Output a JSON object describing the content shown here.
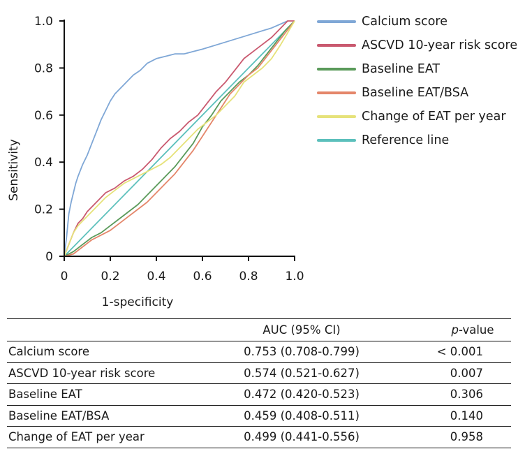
{
  "chart_data": {
    "type": "line",
    "title": "",
    "xlabel": "1-specificity",
    "ylabel": "Sensitivity",
    "xlim": [
      0,
      1
    ],
    "ylim": [
      0,
      1
    ],
    "x_ticks": [
      "0",
      "0.2",
      "0.4",
      "0.6",
      "0.8",
      "1.0"
    ],
    "y_ticks": [
      "0",
      "0.2",
      "0.4",
      "0.6",
      "0.8",
      "1.0"
    ],
    "legend_position": "top-right",
    "series": [
      {
        "name": "Calcium score",
        "color": "#7fa7d6",
        "x": [
          0,
          0.01,
          0.02,
          0.03,
          0.04,
          0.05,
          0.06,
          0.08,
          0.1,
          0.12,
          0.14,
          0.16,
          0.18,
          0.2,
          0.22,
          0.25,
          0.28,
          0.3,
          0.33,
          0.36,
          0.4,
          0.44,
          0.48,
          0.52,
          0.56,
          0.6,
          0.7,
          0.8,
          0.9,
          0.97
        ],
        "y": [
          0,
          0.08,
          0.18,
          0.23,
          0.27,
          0.31,
          0.34,
          0.39,
          0.43,
          0.48,
          0.53,
          0.58,
          0.62,
          0.66,
          0.69,
          0.72,
          0.75,
          0.77,
          0.79,
          0.82,
          0.84,
          0.85,
          0.86,
          0.86,
          0.87,
          0.88,
          0.91,
          0.94,
          0.97,
          1.0
        ]
      },
      {
        "name": "ASCVD 10-year risk score",
        "color": "#c9596f",
        "x": [
          0,
          0.02,
          0.04,
          0.06,
          0.08,
          0.1,
          0.14,
          0.18,
          0.22,
          0.26,
          0.3,
          0.34,
          0.38,
          0.42,
          0.46,
          0.5,
          0.54,
          0.58,
          0.62,
          0.66,
          0.7,
          0.74,
          0.78,
          0.82,
          0.86,
          0.9,
          0.94,
          0.97,
          1.0
        ],
        "y": [
          0,
          0.05,
          0.1,
          0.14,
          0.16,
          0.19,
          0.23,
          0.27,
          0.29,
          0.32,
          0.34,
          0.37,
          0.41,
          0.46,
          0.5,
          0.53,
          0.57,
          0.6,
          0.65,
          0.7,
          0.74,
          0.79,
          0.84,
          0.87,
          0.9,
          0.93,
          0.97,
          1.0,
          1.0
        ]
      },
      {
        "name": "Baseline EAT",
        "color": "#5a9a5a",
        "x": [
          0,
          0.04,
          0.08,
          0.12,
          0.16,
          0.2,
          0.24,
          0.28,
          0.32,
          0.36,
          0.4,
          0.44,
          0.48,
          0.52,
          0.56,
          0.6,
          0.64,
          0.68,
          0.72,
          0.76,
          0.8,
          0.84,
          0.88,
          0.92,
          0.96,
          1.0
        ],
        "y": [
          0,
          0.02,
          0.05,
          0.08,
          0.1,
          0.13,
          0.16,
          0.19,
          0.22,
          0.26,
          0.3,
          0.34,
          0.38,
          0.43,
          0.48,
          0.55,
          0.6,
          0.66,
          0.7,
          0.74,
          0.77,
          0.81,
          0.86,
          0.91,
          0.96,
          1.0
        ]
      },
      {
        "name": "Baseline EAT/BSA",
        "color": "#e4866a",
        "x": [
          0,
          0.04,
          0.08,
          0.12,
          0.16,
          0.2,
          0.24,
          0.28,
          0.32,
          0.36,
          0.4,
          0.44,
          0.48,
          0.52,
          0.56,
          0.6,
          0.64,
          0.68,
          0.72,
          0.76,
          0.8,
          0.84,
          0.88,
          0.92,
          0.96,
          1.0
        ],
        "y": [
          0,
          0.01,
          0.04,
          0.07,
          0.09,
          0.11,
          0.14,
          0.17,
          0.2,
          0.23,
          0.27,
          0.31,
          0.35,
          0.4,
          0.45,
          0.51,
          0.57,
          0.63,
          0.69,
          0.73,
          0.77,
          0.8,
          0.85,
          0.9,
          0.95,
          1.0
        ]
      },
      {
        "name": "Change of EAT per year",
        "color": "#e6e27a",
        "x": [
          0,
          0.02,
          0.04,
          0.06,
          0.08,
          0.1,
          0.14,
          0.18,
          0.22,
          0.26,
          0.3,
          0.34,
          0.38,
          0.42,
          0.46,
          0.5,
          0.54,
          0.58,
          0.62,
          0.66,
          0.7,
          0.74,
          0.78,
          0.82,
          0.86,
          0.9,
          0.94,
          0.97,
          1.0
        ],
        "y": [
          0,
          0.05,
          0.1,
          0.13,
          0.15,
          0.17,
          0.21,
          0.25,
          0.28,
          0.31,
          0.33,
          0.35,
          0.37,
          0.39,
          0.42,
          0.46,
          0.5,
          0.54,
          0.57,
          0.6,
          0.64,
          0.68,
          0.74,
          0.77,
          0.8,
          0.84,
          0.9,
          0.95,
          1.0
        ]
      },
      {
        "name": "Reference line",
        "color": "#5cc0bc",
        "x": [
          0,
          1
        ],
        "y": [
          0,
          1
        ]
      }
    ]
  },
  "table": {
    "headers": {
      "name": "",
      "auc": "AUC (95% CI)",
      "p_prefix": "p",
      "p_suffix": "-value"
    },
    "rows": [
      {
        "name": "Calcium score",
        "auc": "0.753 (0.708-0.799)",
        "p": "< 0.001"
      },
      {
        "name": "ASCVD 10-year risk score",
        "auc": "0.574 (0.521-0.627)",
        "p": "0.007"
      },
      {
        "name": "Baseline EAT",
        "auc": "0.472 (0.420-0.523)",
        "p": "0.306"
      },
      {
        "name": "Baseline EAT/BSA",
        "auc": "0.459 (0.408-0.511)",
        "p": "0.140"
      },
      {
        "name": "Change of EAT per year",
        "auc": "0.499 (0.441-0.556)",
        "p": "0.958"
      }
    ]
  }
}
